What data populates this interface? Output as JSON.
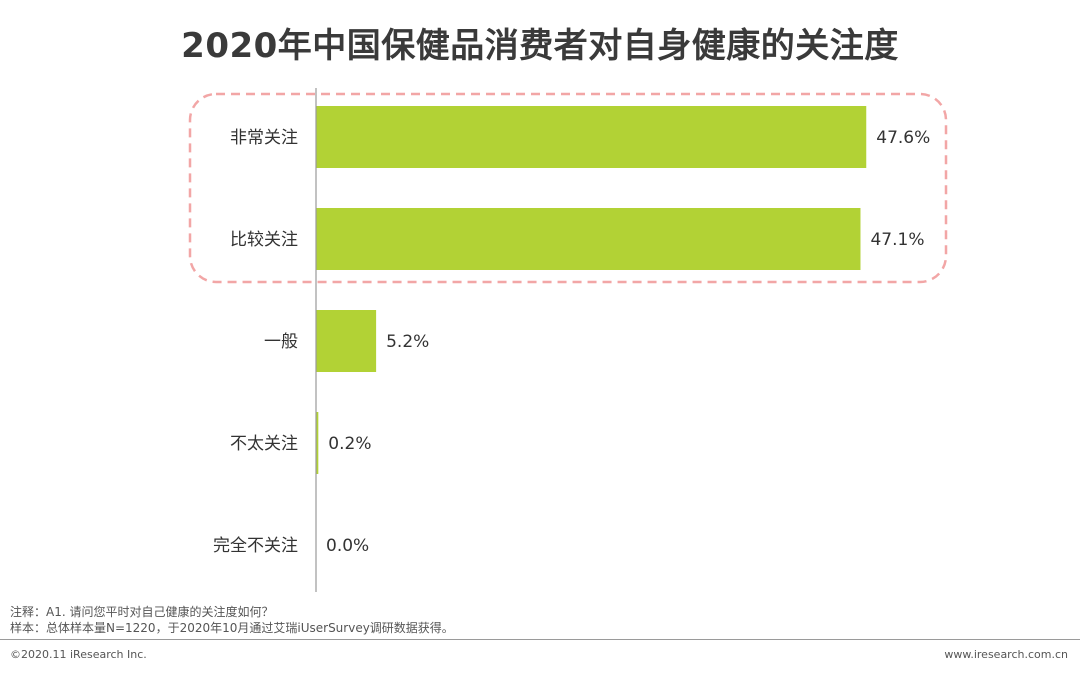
{
  "chart_data": {
    "type": "bar",
    "orientation": "horizontal",
    "title": "2020年中国保健品消费者对自身健康的关注度",
    "categories": [
      "非常关注",
      "比较关注",
      "一般",
      "不太关注",
      "完全不关注"
    ],
    "values": [
      47.6,
      47.1,
      5.2,
      0.2,
      0.0
    ],
    "value_labels": [
      "47.6%",
      "47.1%",
      "5.2%",
      "0.2%",
      "0.0%"
    ],
    "unit": "%",
    "xlim": [
      0,
      50
    ],
    "grid": false,
    "legend": "none",
    "highlight": {
      "categories": [
        "非常关注",
        "比较关注"
      ],
      "style": "dashed rounded box"
    },
    "colors": {
      "bar": "#b2d235",
      "highlight_border": "#f2a6a6",
      "axis": "#9a9a9a"
    }
  },
  "notes": {
    "note": "注释：A1. 请问您平时对自己健康的关注度如何？",
    "sample": "样本：总体样本量N=1220，于2020年10月通过艾瑞iUserSurvey调研数据获得。"
  },
  "footer": {
    "copyright": "©2020.11 iResearch Inc.",
    "website": "www.iresearch.com.cn"
  }
}
